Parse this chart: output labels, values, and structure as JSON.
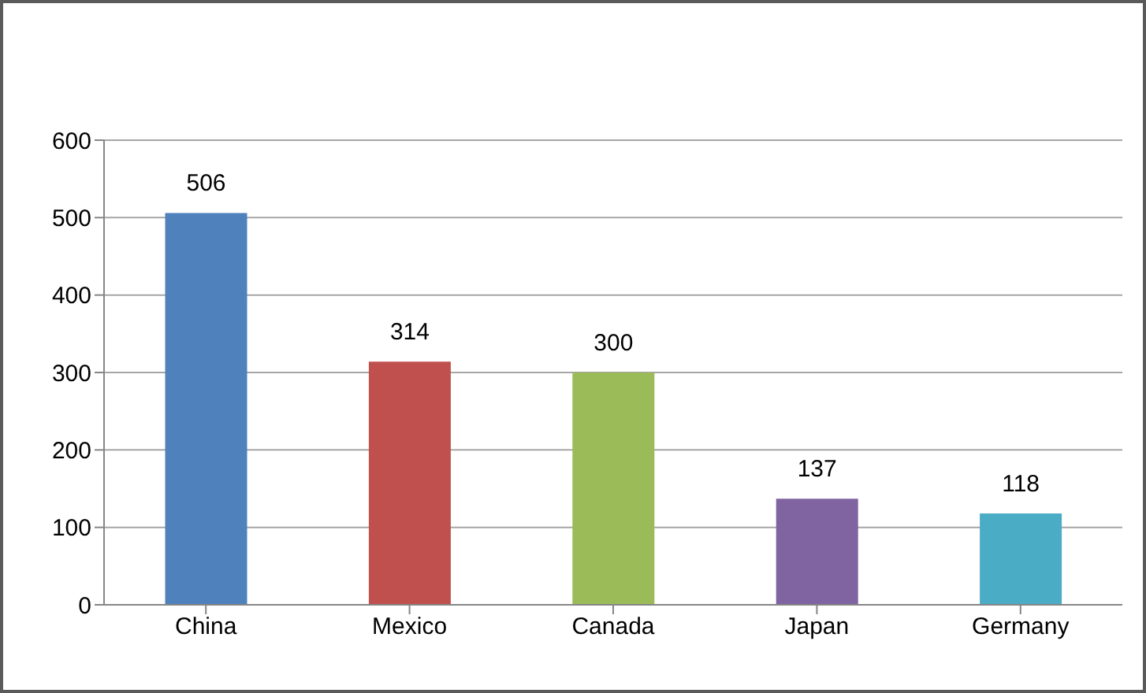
{
  "chart_data": {
    "type": "bar",
    "categories": [
      "China",
      "Mexico",
      "Canada",
      "Japan",
      "Germany"
    ],
    "values": [
      506,
      314,
      300,
      137,
      118
    ],
    "colors": [
      "#4f81bd",
      "#c0504d",
      "#9bbb59",
      "#8064a2",
      "#4bacc6"
    ],
    "ylim": [
      0,
      600
    ],
    "yticks": [
      0,
      100,
      200,
      300,
      400,
      500,
      600
    ],
    "grid": "y",
    "data_labels": true,
    "legend": false
  }
}
